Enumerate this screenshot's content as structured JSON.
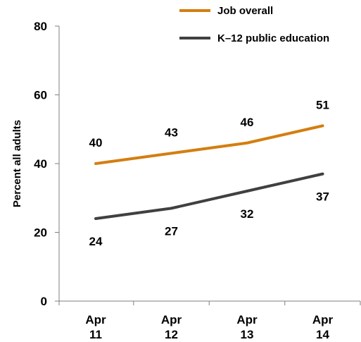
{
  "chart_data": {
    "type": "line",
    "x": [
      {
        "line1": "Apr",
        "line2": "11"
      },
      {
        "line1": "Apr",
        "line2": "12"
      },
      {
        "line1": "Apr",
        "line2": "13"
      },
      {
        "line1": "Apr",
        "line2": "14"
      }
    ],
    "series": [
      {
        "name": "Job overall",
        "color": "#d47e10",
        "values": [
          40,
          43,
          46,
          51
        ],
        "label_position": "above"
      },
      {
        "name": "K–12 public education",
        "color": "#404040",
        "values": [
          24,
          27,
          32,
          37
        ],
        "label_position": "below"
      }
    ],
    "ylabel": "Percent all adults",
    "ylim": [
      0,
      80
    ],
    "yticks": [
      0,
      20,
      40,
      60,
      80
    ],
    "grid": false,
    "legend_position": "top-right"
  }
}
